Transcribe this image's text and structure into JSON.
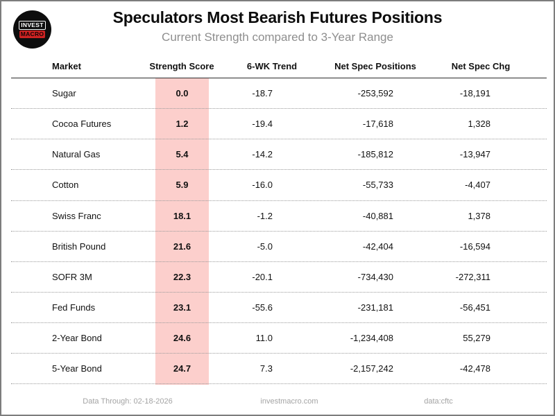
{
  "logo": {
    "line1": "INVEST",
    "line2": "MACRO"
  },
  "header": {
    "title": "Speculators Most Bearish Futures Positions",
    "subtitle": "Current Strength compared to 3-Year Range"
  },
  "table": {
    "columns": [
      "Market",
      "Strength Score",
      "6-WK Trend",
      "Net Spec Positions",
      "Net Spec Chg"
    ],
    "rows": [
      {
        "market": "Sugar",
        "strength_score": "0.0",
        "trend_6wk": "-18.7",
        "net_spec_positions": "-253,592",
        "net_spec_chg": "-18,191"
      },
      {
        "market": "Cocoa Futures",
        "strength_score": "1.2",
        "trend_6wk": "-19.4",
        "net_spec_positions": "-17,618",
        "net_spec_chg": "1,328"
      },
      {
        "market": "Natural Gas",
        "strength_score": "5.4",
        "trend_6wk": "-14.2",
        "net_spec_positions": "-185,812",
        "net_spec_chg": "-13,947"
      },
      {
        "market": "Cotton",
        "strength_score": "5.9",
        "trend_6wk": "-16.0",
        "net_spec_positions": "-55,733",
        "net_spec_chg": "-4,407"
      },
      {
        "market": "Swiss Franc",
        "strength_score": "18.1",
        "trend_6wk": "-1.2",
        "net_spec_positions": "-40,881",
        "net_spec_chg": "1,378"
      },
      {
        "market": "British Pound",
        "strength_score": "21.6",
        "trend_6wk": "-5.0",
        "net_spec_positions": "-42,404",
        "net_spec_chg": "-16,594"
      },
      {
        "market": "SOFR 3M",
        "strength_score": "22.3",
        "trend_6wk": "-20.1",
        "net_spec_positions": "-734,430",
        "net_spec_chg": "-272,311"
      },
      {
        "market": "Fed Funds",
        "strength_score": "23.1",
        "trend_6wk": "-55.6",
        "net_spec_positions": "-231,181",
        "net_spec_chg": "-56,451"
      },
      {
        "market": "2-Year Bond",
        "strength_score": "24.6",
        "trend_6wk": "11.0",
        "net_spec_positions": "-1,234,408",
        "net_spec_chg": "55,279"
      },
      {
        "market": "5-Year Bond",
        "strength_score": "24.7",
        "trend_6wk": "7.3",
        "net_spec_positions": "-2,157,242",
        "net_spec_chg": "-42,478"
      }
    ]
  },
  "footer": {
    "data_through": "Data Through: 02-18-2026",
    "website": "investmacro.com",
    "source": "data:cftc"
  },
  "colors": {
    "strength_band": "#fccfcc",
    "accent_red": "#cc2222",
    "subtitle_gray": "#8e8e8e",
    "footer_gray": "#a3a3a3"
  },
  "chart_data": {
    "type": "table",
    "title": "Speculators Most Bearish Futures Positions",
    "subtitle": "Current Strength compared to 3-Year Range",
    "columns": [
      "Market",
      "Strength Score",
      "6-WK Trend",
      "Net Spec Positions",
      "Net Spec Chg"
    ],
    "highlight": {
      "column": "Strength Score",
      "style": "pink-band",
      "color": "#fccfcc"
    },
    "rows": [
      [
        "Sugar",
        0.0,
        -18.7,
        -253592,
        -18191
      ],
      [
        "Cocoa Futures",
        1.2,
        -19.4,
        -17618,
        1328
      ],
      [
        "Natural Gas",
        5.4,
        -14.2,
        -185812,
        -13947
      ],
      [
        "Cotton",
        5.9,
        -16.0,
        -55733,
        -4407
      ],
      [
        "Swiss Franc",
        18.1,
        -1.2,
        -40881,
        1378
      ],
      [
        "British Pound",
        21.6,
        -5.0,
        -42404,
        -16594
      ],
      [
        "SOFR 3M",
        22.3,
        -20.1,
        -734430,
        -272311
      ],
      [
        "Fed Funds",
        23.1,
        -55.6,
        -231181,
        -56451
      ],
      [
        "2-Year Bond",
        24.6,
        11.0,
        -1234408,
        55279
      ],
      [
        "5-Year Bond",
        24.7,
        7.3,
        -2157242,
        -42478
      ]
    ],
    "footer": [
      "Data Through: 02-18-2026",
      "investmacro.com",
      "data:cftc"
    ]
  }
}
